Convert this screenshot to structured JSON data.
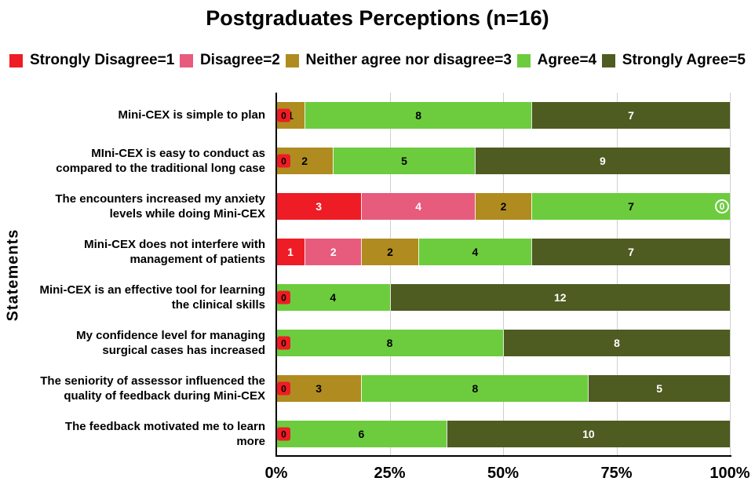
{
  "title": "Postgraduates Perceptions (n=16)",
  "ylabel": "Statements",
  "legend": [
    {
      "label": "Strongly Disagree=1",
      "color": "#ee1c25"
    },
    {
      "label": "Disagree=2",
      "color": "#e75b7d"
    },
    {
      "label": "Neither agree nor disagree=3",
      "color": "#b08b1f"
    },
    {
      "label": "Agree=4",
      "color": "#6ccc3d"
    },
    {
      "label": "Strongly Agree=5",
      "color": "#4e5b21"
    }
  ],
  "chart_data": {
    "type": "bar",
    "orientation": "horizontal",
    "stacked": true,
    "total_per_row": 16,
    "title": "Postgraduates Perceptions (n=16)",
    "ylabel": "Statements",
    "categories": [
      "Mini-CEX is simple to plan",
      "MIni-CEX is easy to conduct as\ncompared to the traditional long case",
      "The encounters increased my anxiety\nlevels while doing Mini-CEX",
      "Mini-CEX does not interfere with\nmanagement of patients",
      "Mini-CEX is an effective tool for learning\nthe clinical skills",
      "My confidence level for managing\nsurgical cases has increased",
      "The seniority of assessor influenced the\nquality of feedback during Mini-CEX",
      "The feedback motivated me to learn\nmore"
    ],
    "series": [
      {
        "name": "Strongly Disagree=1",
        "color": "#ee1c25",
        "label_color": "#ffffff",
        "values": [
          0,
          0,
          3,
          1,
          0,
          0,
          0,
          0
        ]
      },
      {
        "name": "Disagree=2",
        "color": "#e75b7d",
        "label_color": "#ffffff",
        "values": [
          0,
          0,
          4,
          2,
          0,
          0,
          0,
          0
        ]
      },
      {
        "name": "Neither agree nor disagree=3",
        "color": "#b08b1f",
        "label_color": "#000000",
        "values": [
          1,
          2,
          2,
          2,
          0,
          0,
          3,
          0
        ]
      },
      {
        "name": "Agree=4",
        "color": "#6ccc3d",
        "label_color": "#000000",
        "values": [
          8,
          5,
          7,
          4,
          4,
          8,
          8,
          6
        ]
      },
      {
        "name": "Strongly Agree=5",
        "color": "#4e5b21",
        "label_color": "#ffffff",
        "values": [
          7,
          9,
          0,
          7,
          12,
          8,
          5,
          10
        ]
      }
    ],
    "xticks": [
      "0%",
      "25%",
      "50%",
      "75%",
      "100%"
    ],
    "xlim": [
      0,
      100
    ],
    "grid_positions": [
      25,
      50,
      75,
      100
    ],
    "legend_position": "top"
  }
}
